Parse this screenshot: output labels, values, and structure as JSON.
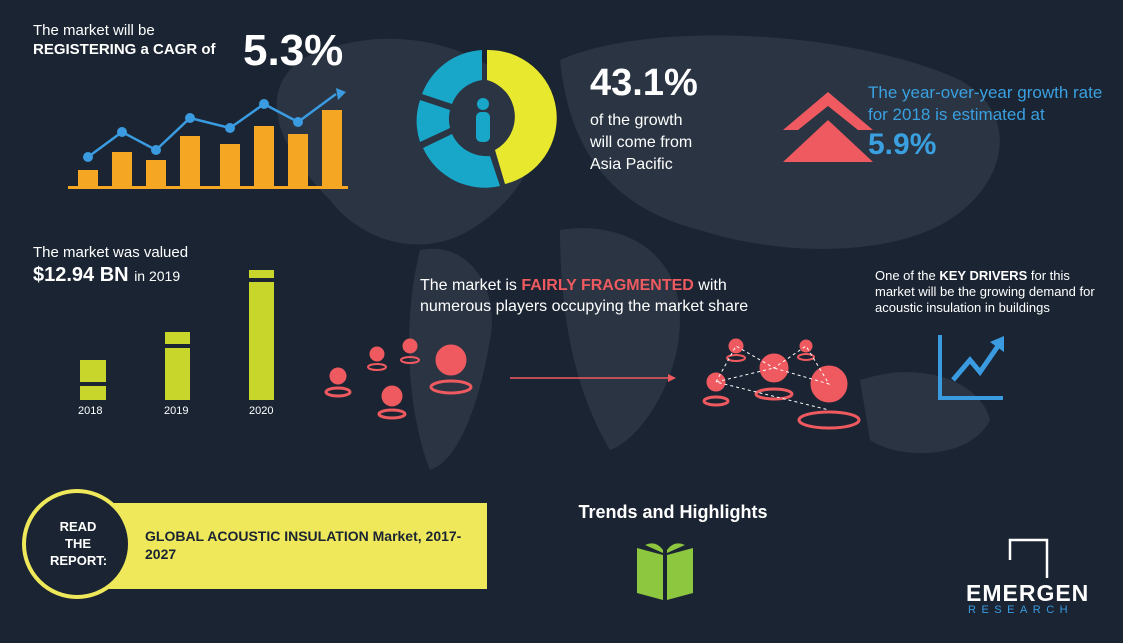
{
  "cagr": {
    "intro": "The market will be",
    "label": "REGISTERING a CAGR of",
    "value": "5.3%"
  },
  "growth": {
    "value": "43.1%",
    "lines": [
      "of the growth",
      "will come from",
      "Asia Pacific"
    ]
  },
  "yoy": {
    "text": "The year-over-year growth rate for 2018 is estimated at",
    "value": "5.9%"
  },
  "valuation": {
    "intro": "The market was valued",
    "value": "$12.94 BN",
    "year": "in 2019",
    "years": [
      "2018",
      "2019",
      "2020"
    ]
  },
  "fragmented": {
    "before": "The market is",
    "highlight": "FAIRLY FRAGMENTED",
    "after": "with",
    "line2": "numerous players occupying the market share"
  },
  "drivers": {
    "before": "One of the",
    "highlight": "KEY DRIVERS",
    "after": "for this market will be the growing demand for acoustic insulation in buildings"
  },
  "report": {
    "cta": "READ THE REPORT:",
    "title": "GLOBAL ACOUSTIC INSULATION Market, 2017-2027"
  },
  "section": "Trends and Highlights",
  "logo": {
    "name": "EMERGEN",
    "sub": "RESEARCH"
  }
}
